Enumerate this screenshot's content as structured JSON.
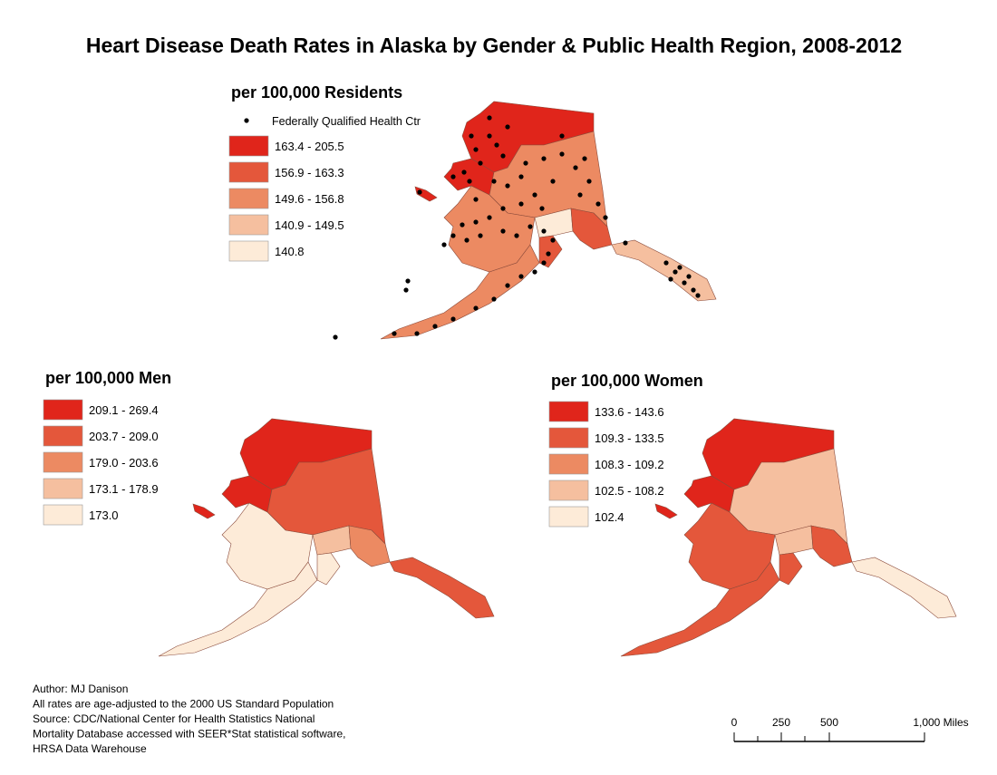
{
  "title": "Heart Disease Death Rates in Alaska by Gender & Public Health Region, 2008-2012",
  "maps": [
    {
      "title": "per 100,000 Residents",
      "point_legend": "Federally Qualified Health Ctr",
      "legend": [
        {
          "label": "163.4 - 205.5",
          "color": "#e0251b"
        },
        {
          "label": "156.9 - 163.3",
          "color": "#e4573b"
        },
        {
          "label": "149.6 - 156.8",
          "color": "#ec8a62"
        },
        {
          "label": "140.9 - 149.5",
          "color": "#f5bf9f"
        },
        {
          "label": "140.8",
          "color": "#fdebd8"
        }
      ]
    },
    {
      "title": "per 100,000 Men",
      "legend": [
        {
          "label": "209.1 - 269.4",
          "color": "#e0251b"
        },
        {
          "label": "203.7 - 209.0",
          "color": "#e4573b"
        },
        {
          "label": "179.0 - 203.6",
          "color": "#ec8a62"
        },
        {
          "label": "173.1 - 178.9",
          "color": "#f5bf9f"
        },
        {
          "label": "173.0",
          "color": "#fdebd8"
        }
      ]
    },
    {
      "title": "per 100,000 Women",
      "legend": [
        {
          "label": "133.6 - 143.6",
          "color": "#e0251b"
        },
        {
          "label": "109.3 - 133.5",
          "color": "#e4573b"
        },
        {
          "label": "108.3 - 109.2",
          "color": "#ec8a62"
        },
        {
          "label": "102.5 - 108.2",
          "color": "#f5bf9f"
        },
        {
          "label": "102.4",
          "color": "#fdebd8"
        }
      ]
    }
  ],
  "notes": [
    "Author:  MJ Danison",
    "All rates are age-adjusted to the 2000 US Standard Population",
    "Source: CDC/National Center for Health Statistics National",
    "Mortality Database accessed with SEER*Stat statistical software,",
    "HRSA Data Warehouse"
  ],
  "scale_bar": {
    "labels": [
      "0",
      "250",
      "500",
      "1,000 Miles"
    ]
  }
}
